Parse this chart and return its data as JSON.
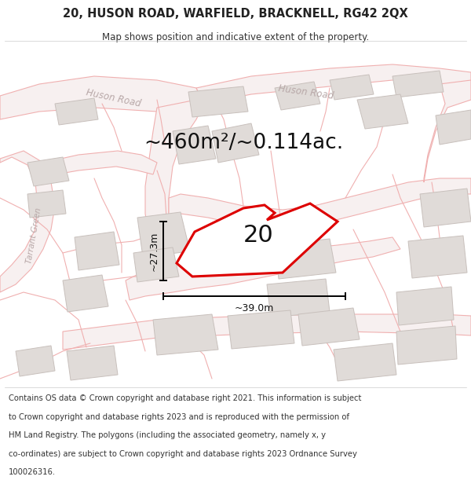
{
  "title": "20, HUSON ROAD, WARFIELD, BRACKNELL, RG42 2QX",
  "subtitle": "Map shows position and indicative extent of the property.",
  "area_text": "~460m²/~0.114ac.",
  "plot_number": "20",
  "dim_width": "~39.0m",
  "dim_height": "~27.3m",
  "footer_lines": [
    "Contains OS data © Crown copyright and database right 2021. This information is subject",
    "to Crown copyright and database rights 2023 and is reproduced with the permission of",
    "HM Land Registry. The polygons (including the associated geometry, namely x, y",
    "co-ordinates) are subject to Crown copyright and database rights 2023 Ordnance Survey",
    "100026316."
  ],
  "map_bg": "#f7f5f3",
  "road_outline_color": "#f0b0b0",
  "road_fill_color": "#f7f0f0",
  "building_fill": "#e0dbd8",
  "building_edge": "#c8c0bc",
  "plot_color": "#dd0000",
  "plot_fill": "#ffffff",
  "label_road_color": "#b8a8a8",
  "label_tarrant_color": "#b8a8a8",
  "header_bg": "#ffffff",
  "footer_bg": "#ffffff",
  "title_fontsize": 10.5,
  "subtitle_fontsize": 8.5,
  "area_fontsize": 19,
  "plot_num_fontsize": 22,
  "footer_fontsize": 7.2,
  "dim_fontsize": 9
}
